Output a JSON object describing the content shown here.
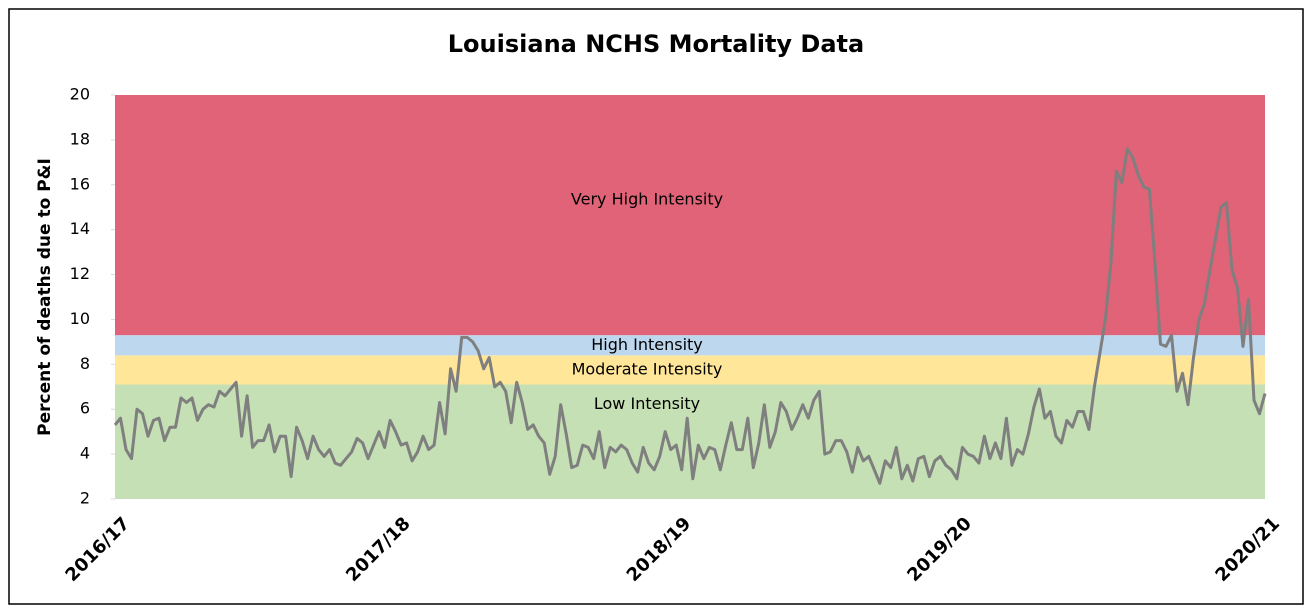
{
  "chart_data": {
    "type": "line",
    "title": "Louisiana NCHS Mortality Data",
    "y_label": "Percent of deaths due to P&I",
    "ylim": [
      2,
      20
    ],
    "yticks": [
      2,
      4,
      6,
      8,
      10,
      12,
      14,
      16,
      18,
      20
    ],
    "bands": [
      {
        "name": "Low Intensity",
        "from": 2,
        "to": 7.1,
        "color": "#c5e0b4"
      },
      {
        "name": "Moderate Intensity",
        "from": 7.1,
        "to": 8.4,
        "color": "#ffe699"
      },
      {
        "name": "High Intensity",
        "from": 8.4,
        "to": 9.3,
        "color": "#bdd7ee"
      },
      {
        "name": "Very High Intensity",
        "from": 9.3,
        "to": 20,
        "color": "#e06377"
      }
    ],
    "categories": [
      "2016/17",
      null,
      null,
      null,
      null,
      null,
      null,
      null,
      null,
      null,
      null,
      null,
      null,
      null,
      null,
      null,
      null,
      null,
      null,
      null,
      null,
      null,
      null,
      null,
      null,
      null,
      null,
      null,
      null,
      null,
      null,
      null,
      null,
      null,
      null,
      null,
      null,
      null,
      null,
      null,
      null,
      null,
      null,
      null,
      null,
      null,
      null,
      null,
      null,
      null,
      null,
      "2017/18",
      null,
      null,
      null,
      null,
      null,
      null,
      null,
      null,
      null,
      null,
      null,
      null,
      null,
      null,
      null,
      null,
      null,
      null,
      null,
      null,
      null,
      null,
      null,
      null,
      null,
      null,
      null,
      null,
      null,
      null,
      null,
      null,
      null,
      null,
      null,
      null,
      null,
      null,
      null,
      null,
      null,
      null,
      null,
      null,
      null,
      null,
      null,
      null,
      null,
      null,
      "2018/19",
      null,
      null,
      null,
      null,
      null,
      null,
      null,
      null,
      null,
      null,
      null,
      null,
      null,
      null,
      null,
      null,
      null,
      null,
      null,
      null,
      null,
      null,
      null,
      null,
      null,
      null,
      null,
      null,
      null,
      null,
      null,
      null,
      null,
      null,
      null,
      null,
      null,
      null,
      null,
      null,
      null,
      null,
      null,
      null,
      null,
      null,
      null,
      null,
      null,
      null,
      "2019/20",
      null,
      null,
      null,
      null,
      null,
      null,
      null,
      null,
      null,
      null,
      null,
      null,
      null,
      null,
      null,
      null,
      null,
      null,
      null,
      null,
      null,
      null,
      null,
      null,
      null,
      null,
      null,
      null,
      null,
      null,
      null,
      null,
      null,
      null,
      null,
      null,
      null,
      null,
      null,
      null,
      null,
      null,
      null,
      null,
      null,
      null,
      null,
      null,
      null,
      null,
      null,
      null,
      null,
      null,
      null,
      "2020/21"
    ],
    "series": [
      {
        "color": "#7f7f7f",
        "values": [
          5.3,
          5.6,
          4.2,
          3.8,
          6.0,
          5.8,
          4.8,
          5.5,
          5.6,
          4.6,
          5.2,
          5.2,
          6.5,
          6.3,
          6.5,
          5.5,
          6.0,
          6.2,
          6.1,
          6.8,
          6.6,
          6.9,
          7.2,
          4.8,
          6.6,
          4.3,
          4.6,
          4.6,
          5.3,
          4.1,
          4.8,
          4.8,
          3.0,
          5.2,
          4.6,
          3.8,
          4.8,
          4.2,
          3.9,
          4.2,
          3.6,
          3.5,
          3.8,
          4.1,
          4.7,
          4.5,
          3.8,
          4.4,
          5.0,
          4.3,
          5.5,
          5.0,
          4.4,
          4.5,
          3.7,
          4.1,
          4.8,
          4.2,
          4.4,
          6.3,
          4.9,
          7.8,
          6.8,
          9.2,
          9.2,
          9.0,
          8.6,
          7.8,
          8.3,
          7.0,
          7.2,
          6.8,
          5.4,
          7.2,
          6.3,
          5.1,
          5.3,
          4.8,
          4.5,
          3.1,
          3.9,
          6.2,
          4.9,
          3.4,
          3.5,
          4.4,
          4.3,
          3.8,
          5.0,
          3.4,
          4.3,
          4.1,
          4.4,
          4.2,
          3.6,
          3.2,
          4.3,
          3.6,
          3.3,
          3.9,
          5.0,
          4.2,
          4.4,
          3.3,
          5.6,
          2.9,
          4.4,
          3.8,
          4.3,
          4.2,
          3.3,
          4.4,
          5.4,
          4.2,
          4.2,
          5.6,
          3.4,
          4.5,
          6.2,
          4.3,
          5.0,
          6.3,
          5.9,
          5.1,
          5.6,
          6.2,
          5.6,
          6.4,
          6.8,
          4.0,
          4.1,
          4.6,
          4.6,
          4.1,
          3.2,
          4.3,
          3.7,
          3.9,
          3.3,
          2.7,
          3.7,
          3.4,
          4.3,
          2.9,
          3.5,
          2.8,
          3.8,
          3.9,
          3.0,
          3.7,
          3.9,
          3.5,
          3.3,
          2.9,
          4.3,
          4.0,
          3.9,
          3.6,
          4.8,
          3.8,
          4.5,
          3.8,
          5.6,
          3.5,
          4.2,
          4.0,
          4.9,
          6.1,
          6.9,
          5.6,
          5.9,
          4.8,
          4.5,
          5.5,
          5.2,
          5.9,
          5.9,
          5.1,
          7.0,
          8.5,
          10.0,
          12.5,
          16.6,
          16.1,
          17.6,
          17.2,
          16.4,
          15.9,
          15.8,
          12.5,
          8.9,
          8.8,
          9.3,
          6.8,
          7.6,
          6.2,
          8.3,
          10.0,
          10.7,
          12.2,
          13.6,
          15.0,
          15.2,
          12.2,
          11.4,
          8.8,
          10.9,
          6.4,
          5.8,
          6.7
        ]
      }
    ]
  }
}
